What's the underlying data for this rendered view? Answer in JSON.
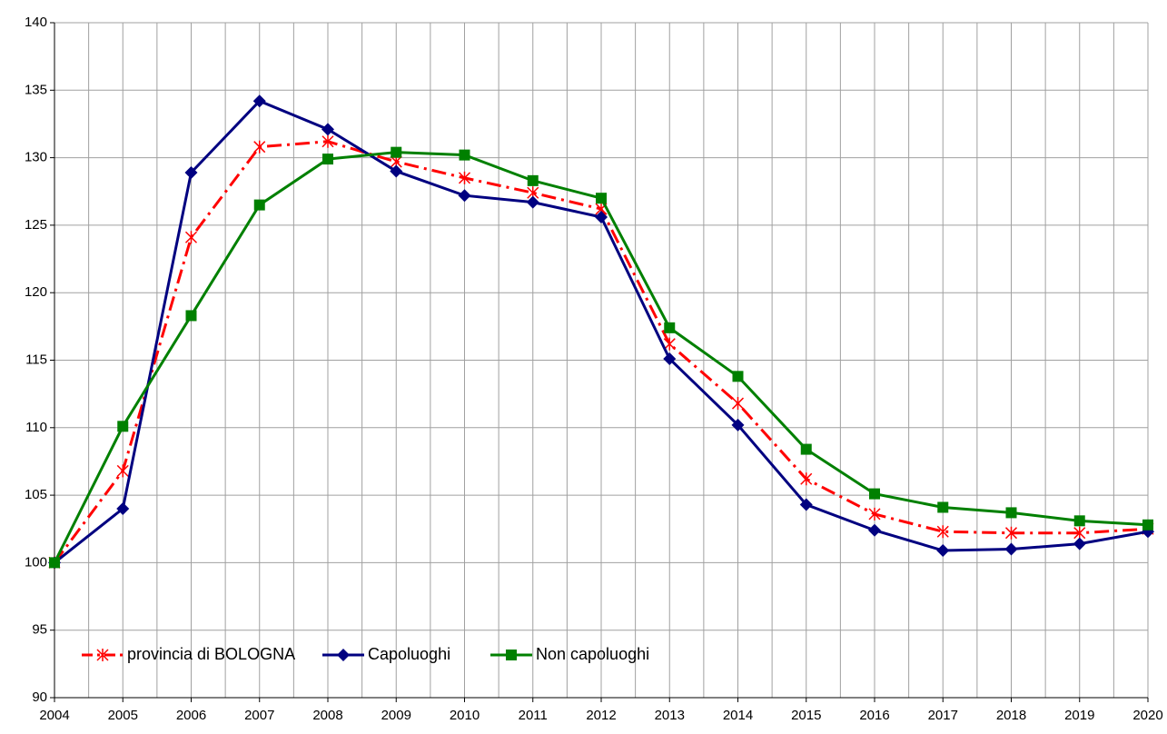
{
  "chart_data": {
    "type": "line",
    "categories": [
      "2004",
      "2005",
      "2006",
      "2007",
      "2008",
      "2009",
      "2010",
      "2011",
      "2012",
      "2013",
      "2014",
      "2015",
      "2016",
      "2017",
      "2018",
      "2019",
      "2020"
    ],
    "series": [
      {
        "name": "provincia di BOLOGNA",
        "color": "#ff0000",
        "marker": "star",
        "dash": "dashdot",
        "values": [
          100,
          106.8,
          124.1,
          130.8,
          131.2,
          129.7,
          128.5,
          127.4,
          126.2,
          116.2,
          111.8,
          106.2,
          103.6,
          102.3,
          102.2,
          102.2,
          102.5
        ]
      },
      {
        "name": "Capoluoghi",
        "color": "#000080",
        "marker": "diamond",
        "dash": "solid",
        "values": [
          100,
          104.0,
          128.9,
          134.2,
          132.1,
          129.0,
          127.2,
          126.7,
          125.6,
          115.1,
          110.2,
          104.3,
          102.4,
          100.9,
          101.0,
          101.4,
          102.3
        ]
      },
      {
        "name": "Non capoluoghi",
        "color": "#008000",
        "marker": "square",
        "dash": "solid",
        "values": [
          100,
          110.1,
          118.3,
          126.5,
          129.9,
          130.4,
          130.2,
          128.3,
          127.0,
          117.4,
          113.8,
          108.4,
          105.1,
          104.1,
          103.7,
          103.1,
          102.8
        ]
      }
    ],
    "ylim": [
      90,
      140
    ],
    "yticks": [
      90,
      95,
      100,
      105,
      110,
      115,
      120,
      125,
      130,
      135,
      140
    ],
    "grid": true,
    "legend": "lower left"
  }
}
